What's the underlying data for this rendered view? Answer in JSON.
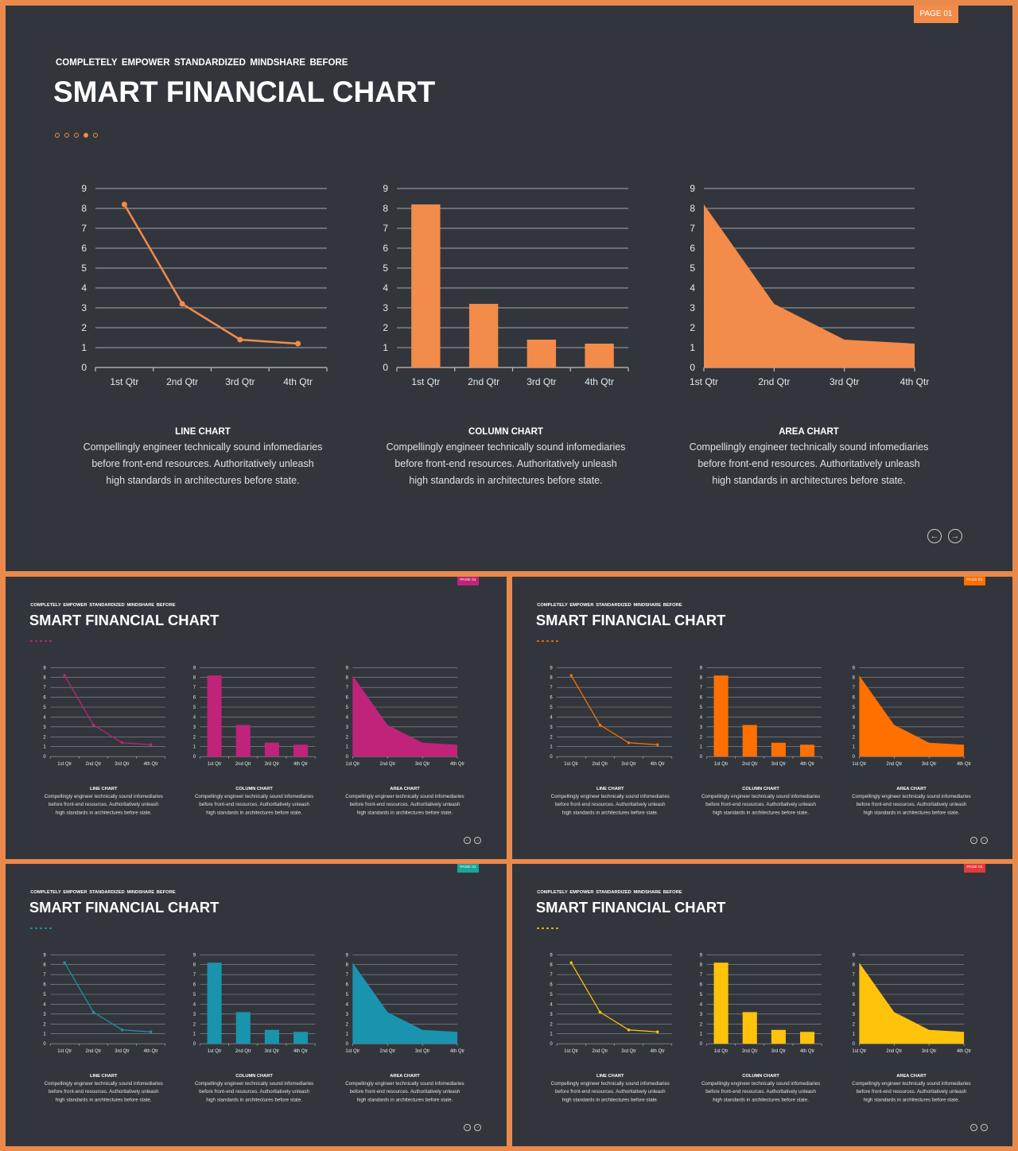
{
  "slides": [
    {
      "id": "main",
      "page_label": "PAGE 01",
      "accent": "#f38b4a",
      "badge_color": "#f38b4a",
      "subtitle": "COMPLETELY  EMPOWER  STANDARDIZED  MINDSHARE  BEFORE",
      "title": "SMART FINANCIAL CHART"
    },
    {
      "id": "magenta",
      "page_label": "PAGE 01",
      "accent": "#c0237a",
      "badge_color": "#c0237a",
      "subtitle": "COMPLETELY  EMPOWER  STANDARDIZED  MINDSHARE  BEFORE",
      "title": "SMART FINANCIAL CHART"
    },
    {
      "id": "orange",
      "page_label": "PAGE 01",
      "accent": "#ff7000",
      "badge_color": "#ff7000",
      "subtitle": "COMPLETELY  EMPOWER  STANDARDIZED  MINDSHARE  BEFORE",
      "title": "SMART FINANCIAL CHART"
    },
    {
      "id": "teal",
      "page_label": "PAGE 01",
      "accent": "#1a93ae",
      "badge_color": "#1ba39c",
      "subtitle": "COMPLETELY  EMPOWER  STANDARDIZED  MINDSHARE  BEFORE",
      "title": "SMART FINANCIAL CHART"
    },
    {
      "id": "yellow",
      "page_label": "PAGE 01",
      "accent": "#ffc30b",
      "badge_color": "#e5383b",
      "subtitle": "COMPLETELY  EMPOWER  STANDARDIZED  MINDSHARE  BEFORE",
      "title": "SMART FINANCIAL CHART"
    }
  ],
  "captions": [
    {
      "heading": "LINE CHART",
      "lines": [
        "Compellingly engineer technically sound infomediaries",
        "before front-end  resources. Authoritatively unleash",
        "high standards in architectures before state."
      ]
    },
    {
      "heading": "COLUMN CHART",
      "lines": [
        "Compellingly engineer technically sound infomediaries",
        "before front-end  resources. Authoritatively unleash",
        "high standards in architectures before state."
      ]
    },
    {
      "heading": "AREA CHART",
      "lines": [
        "Compellingly engineer technically sound infomediaries",
        "before front-end  resources. Authoritatively unleash",
        "high standards in architectures before state."
      ]
    }
  ],
  "chart_data": [
    {
      "type": "line",
      "categories": [
        "1st Qtr",
        "2nd Qtr",
        "3rd Qtr",
        "4th Qtr"
      ],
      "values": [
        8.2,
        3.2,
        1.4,
        1.2
      ],
      "ylim": [
        0,
        9
      ],
      "yticks": [
        0,
        1,
        2,
        3,
        4,
        5,
        6,
        7,
        8,
        9
      ],
      "grid": true
    },
    {
      "type": "bar",
      "categories": [
        "1st Qtr",
        "2nd Qtr",
        "3rd Qtr",
        "4th Qtr"
      ],
      "values": [
        8.2,
        3.2,
        1.4,
        1.2
      ],
      "ylim": [
        0,
        9
      ],
      "yticks": [
        0,
        1,
        2,
        3,
        4,
        5,
        6,
        7,
        8,
        9
      ],
      "grid": true
    },
    {
      "type": "area",
      "categories": [
        "1st Qtr",
        "2nd Qtr",
        "3rd Qtr",
        "4th Qtr"
      ],
      "values": [
        8.2,
        3.2,
        1.4,
        1.2
      ],
      "ylim": [
        0,
        9
      ],
      "yticks": [
        0,
        1,
        2,
        3,
        4,
        5,
        6,
        7,
        8,
        9
      ],
      "grid": true
    }
  ],
  "nav": {
    "prev_icon": "arrow-left-circle-icon",
    "next_icon": "arrow-right-circle-icon",
    "prev_glyph": "←",
    "next_glyph": "→"
  },
  "icons": {
    "progress_dots": "progress-dots-icon"
  }
}
